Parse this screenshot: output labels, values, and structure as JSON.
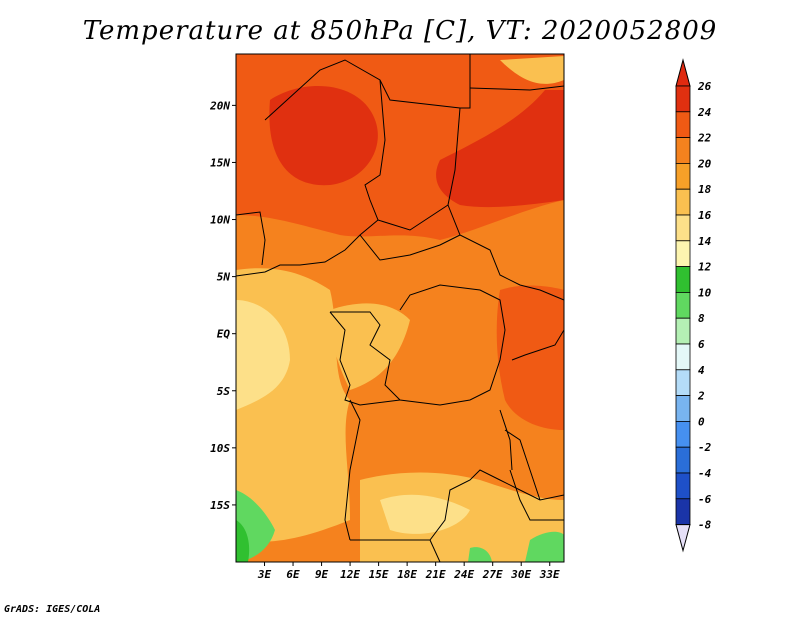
{
  "title": "Temperature at 850hPa [C], VT: 2020052809",
  "credit": "GrADS: IGES/COLA",
  "map": {
    "lon_range": [
      0,
      34.5
    ],
    "lat_range": [
      -20,
      24.5
    ],
    "lat_ticks": [
      {
        "value": 20,
        "label": "20N"
      },
      {
        "value": 15,
        "label": "15N"
      },
      {
        "value": 10,
        "label": "10N"
      },
      {
        "value": 5,
        "label": "5N"
      },
      {
        "value": 0,
        "label": "EQ"
      },
      {
        "value": -5,
        "label": "5S"
      },
      {
        "value": -10,
        "label": "10S"
      },
      {
        "value": -15,
        "label": "15S"
      }
    ],
    "lon_ticks": [
      {
        "value": 3,
        "label": "3E"
      },
      {
        "value": 6,
        "label": "6E"
      },
      {
        "value": 9,
        "label": "9E"
      },
      {
        "value": 12,
        "label": "12E"
      },
      {
        "value": 15,
        "label": "15E"
      },
      {
        "value": 18,
        "label": "18E"
      },
      {
        "value": 21,
        "label": "21E"
      },
      {
        "value": 24,
        "label": "24E"
      },
      {
        "value": 27,
        "label": "27E"
      },
      {
        "value": 30,
        "label": "30E"
      },
      {
        "value": 33,
        "label": "33E"
      }
    ]
  },
  "colorbar": {
    "levels": [
      {
        "label": "26",
        "color": "#e03010"
      },
      {
        "label": "24",
        "color": "#f05a14"
      },
      {
        "label": "22",
        "color": "#f5821e"
      },
      {
        "label": "20",
        "color": "#f7a028"
      },
      {
        "label": "18",
        "color": "#fac050"
      },
      {
        "label": "16",
        "color": "#fde089"
      },
      {
        "label": "14",
        "color": "#fdf5b0"
      },
      {
        "label": "12",
        "color": "#30c030"
      },
      {
        "label": "10",
        "color": "#60d860"
      },
      {
        "label": "8",
        "color": "#b4f0b4"
      },
      {
        "label": "6",
        "color": "#e4f8f8"
      },
      {
        "label": "4",
        "color": "#b4dcf8"
      },
      {
        "label": "2",
        "color": "#78b4f0"
      },
      {
        "label": "0",
        "color": "#4690f0"
      },
      {
        "label": "-2",
        "color": "#2a6ed8"
      },
      {
        "label": "-4",
        "color": "#1e50c8"
      },
      {
        "label": "-6",
        "color": "#1a34a8"
      },
      {
        "label": "-8",
        "color": "#10186e"
      }
    ],
    "top_color": "#e02a10",
    "bottom_color": "#e6e0f8"
  }
}
